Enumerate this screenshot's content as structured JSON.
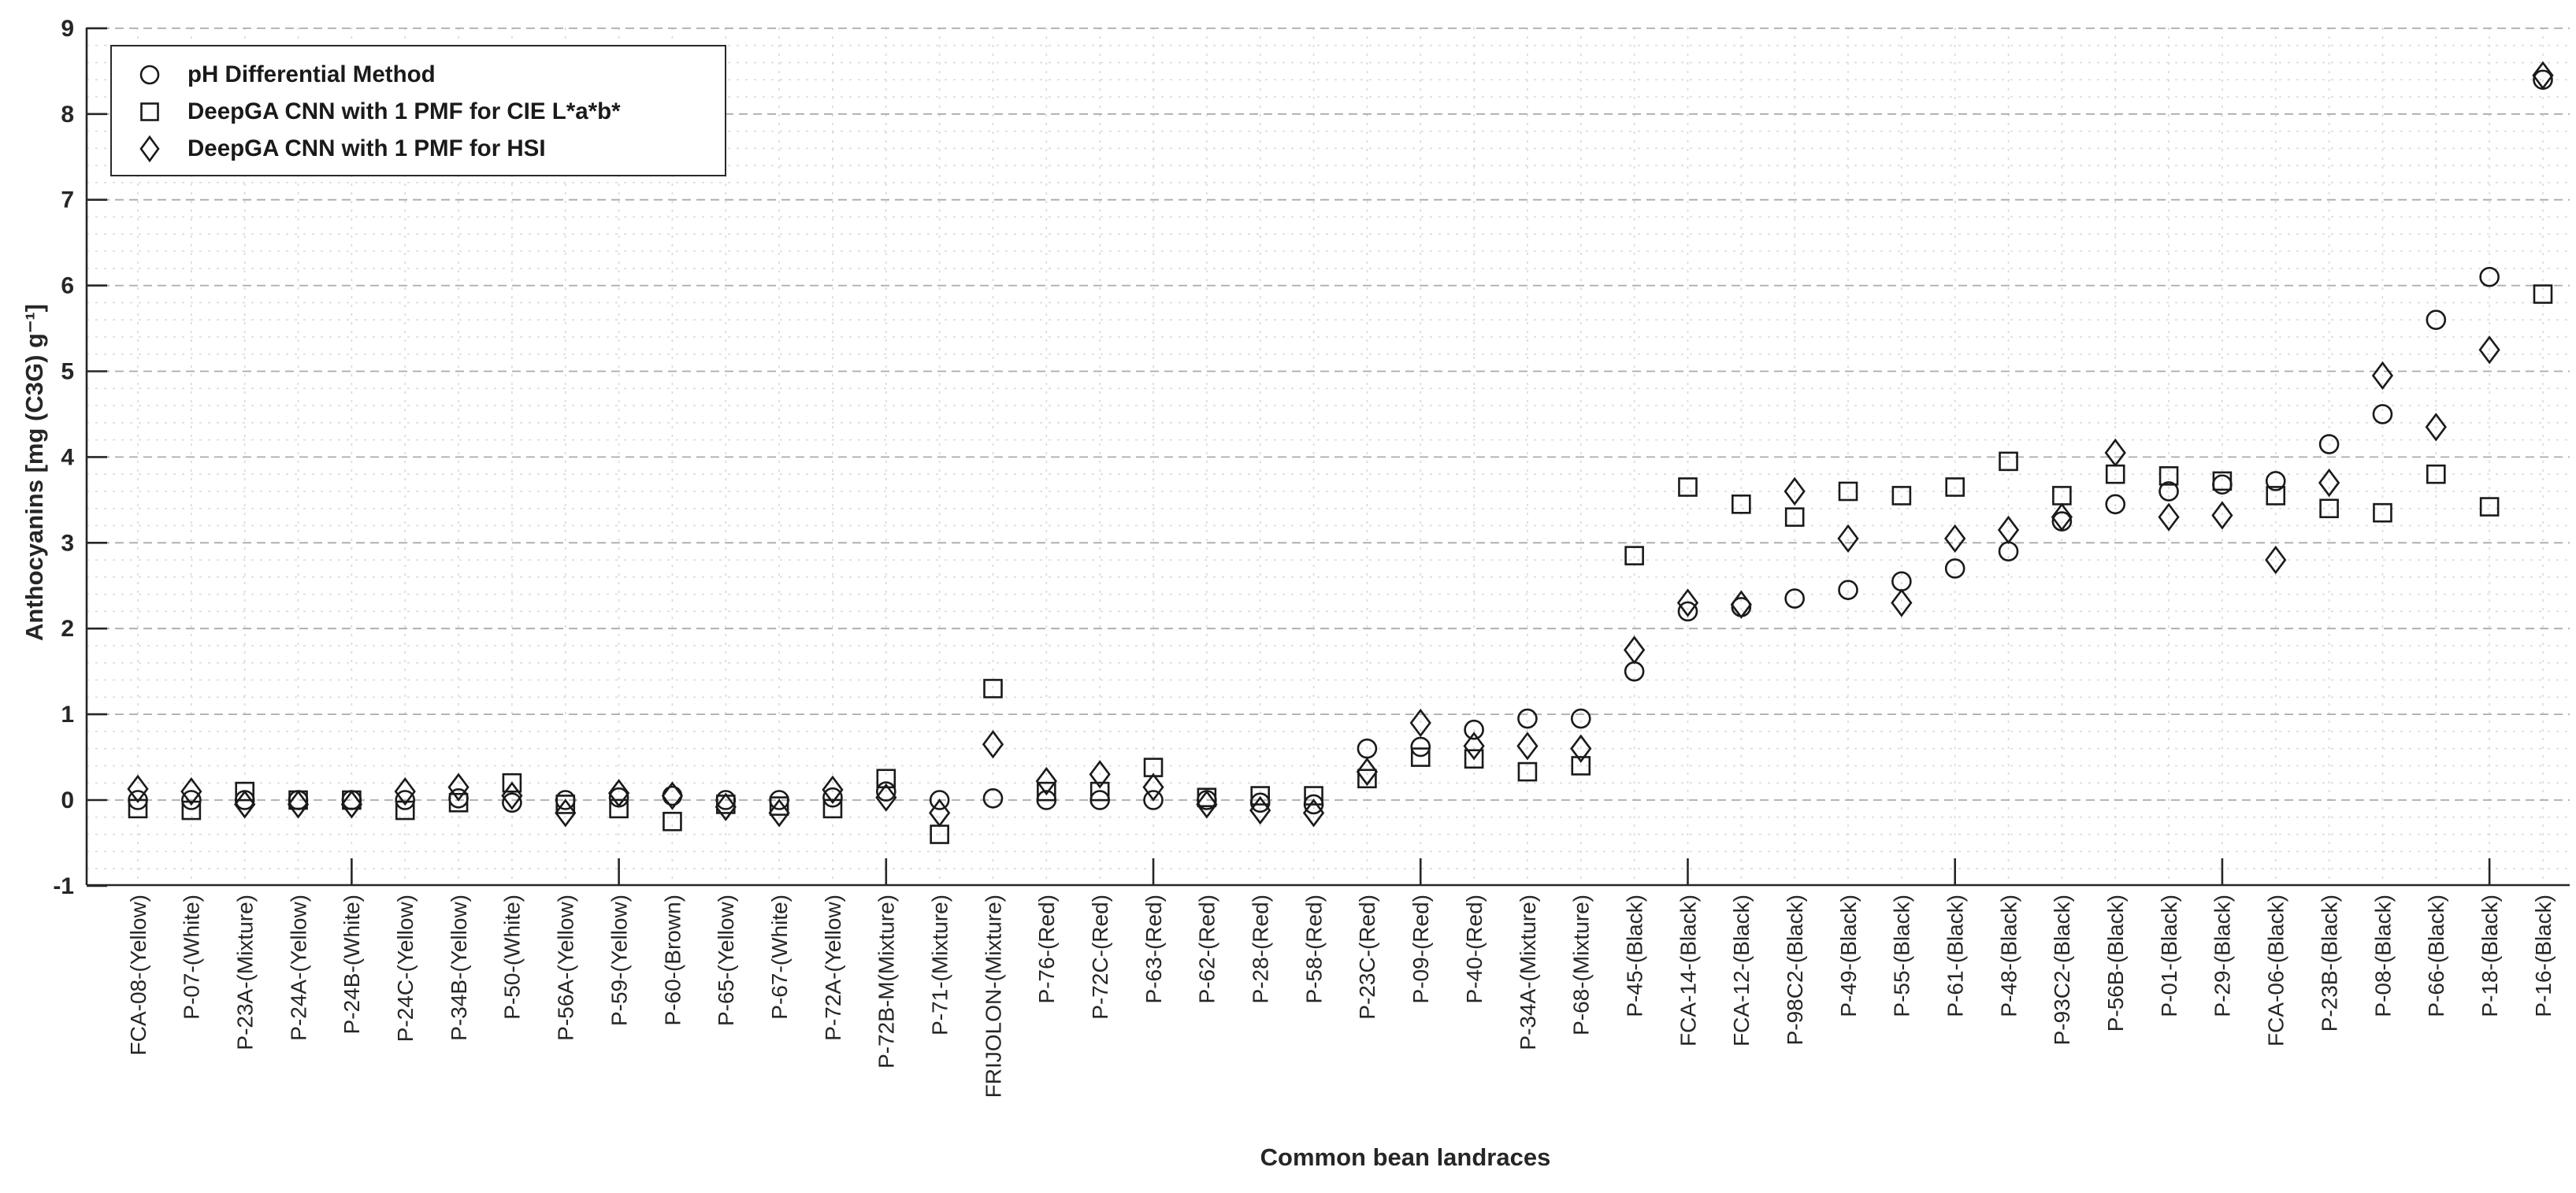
{
  "chart_data": {
    "type": "scatter",
    "title": "",
    "xlabel": "Common bean landraces",
    "ylabel": "Anthocyanins [mg (C3G) g⁻¹]",
    "ylim": [
      -1,
      9
    ],
    "yticks": [
      -1,
      0,
      1,
      2,
      3,
      4,
      5,
      6,
      7,
      8,
      9
    ],
    "minor_grid_step": 0.2,
    "grid": true,
    "legend_position": "top-left",
    "x_major_tick_every": 5,
    "categories": [
      "FCA-08-(Yellow)",
      "P-07-(White)",
      "P-23A-(Mixture)",
      "P-24A-(Yellow)",
      "P-24B-(White)",
      "P-24C-(Yellow)",
      "P-34B-(Yellow)",
      "P-50-(White)",
      "P-56A-(Yellow)",
      "P-59-(Yellow)",
      "P-60-(Brown)",
      "P-65-(Yellow)",
      "P-67-(White)",
      "P-72A-(Yellow)",
      "P-72B-M(Mixture)",
      "P-71-(Mixture)",
      "FRIJOLON-(Mixture)",
      "P-76-(Red)",
      "P-72C-(Red)",
      "P-63-(Red)",
      "P-62-(Red)",
      "P-28-(Red)",
      "P-58-(Red)",
      "P-23C-(Red)",
      "P-09-(Red)",
      "P-40-(Red)",
      "P-34A-(Mixture)",
      "P-68-(Mixture)",
      "P-45-(Black)",
      "FCA-14-(Black)",
      "FCA-12-(Black)",
      "P-98C2-(Black)",
      "P-49-(Black)",
      "P-55-(Black)",
      "P-61-(Black)",
      "P-48-(Black)",
      "P-93C2-(Black)",
      "P-56B-(Black)",
      "P-01-(Black)",
      "P-29-(Black)",
      "FCA-06-(Black)",
      "P-23B-(Black)",
      "P-08-(Black)",
      "P-66-(Black)",
      "P-18-(Black)",
      "P-16-(Black)"
    ],
    "series": [
      {
        "name": "pH Differential Method",
        "marker": "circle",
        "values": [
          0.0,
          0.0,
          0.0,
          0.0,
          0.0,
          0.0,
          0.02,
          -0.03,
          0.0,
          0.03,
          0.05,
          0.0,
          0.0,
          0.03,
          0.1,
          0.0,
          0.02,
          0.0,
          0.0,
          0.0,
          0.0,
          -0.03,
          -0.05,
          0.6,
          0.62,
          0.82,
          0.95,
          0.95,
          1.5,
          2.2,
          2.25,
          2.35,
          2.45,
          2.55,
          2.7,
          2.9,
          3.25,
          3.45,
          3.6,
          3.68,
          3.72,
          4.15,
          4.5,
          5.6,
          6.1,
          8.4
        ]
      },
      {
        "name": "DeepGA CNN with 1 PMF for CIE L*a*b*",
        "marker": "square",
        "values": [
          -0.1,
          -0.12,
          0.1,
          0.0,
          0.0,
          -0.12,
          -0.03,
          0.2,
          -0.05,
          -0.1,
          -0.25,
          -0.05,
          -0.07,
          -0.1,
          0.25,
          -0.4,
          1.3,
          0.1,
          0.1,
          0.38,
          0.03,
          0.05,
          0.05,
          0.25,
          0.5,
          0.48,
          0.33,
          0.4,
          2.85,
          3.65,
          3.45,
          3.3,
          3.6,
          3.55,
          3.65,
          3.95,
          3.55,
          3.8,
          3.78,
          3.72,
          3.55,
          3.4,
          3.35,
          3.8,
          3.42,
          5.9
        ]
      },
      {
        "name": "DeepGA CNN with 1 PMF for HSI",
        "marker": "diamond",
        "values": [
          0.13,
          0.1,
          -0.05,
          -0.05,
          -0.05,
          0.1,
          0.15,
          0.05,
          -0.15,
          0.08,
          0.05,
          -0.08,
          -0.15,
          0.12,
          0.03,
          -0.15,
          0.65,
          0.22,
          0.3,
          0.15,
          -0.05,
          -0.12,
          -0.15,
          0.33,
          0.9,
          0.63,
          0.63,
          0.6,
          1.75,
          2.3,
          2.28,
          3.6,
          3.05,
          2.3,
          3.05,
          3.15,
          3.3,
          4.05,
          3.3,
          3.32,
          2.8,
          3.7,
          4.95,
          4.35,
          5.25,
          8.45
        ]
      }
    ]
  },
  "colors": {
    "marker": "#1a1a1a",
    "axis": "#262626",
    "grid_minor": "#d8d8d8",
    "grid_major": "#ababab",
    "text": "#262626",
    "background": "#ffffff"
  }
}
